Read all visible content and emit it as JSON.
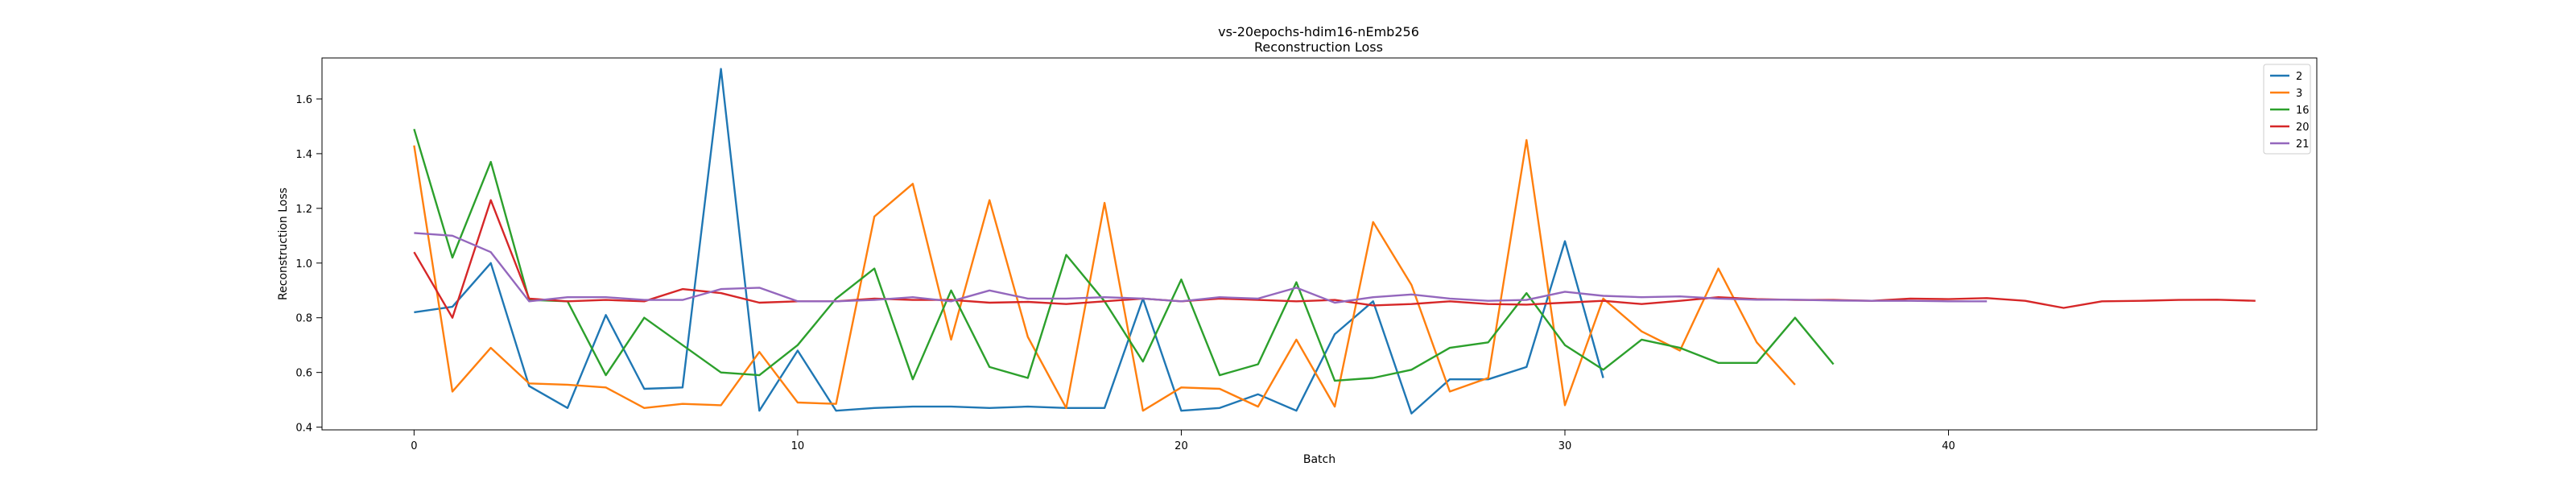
{
  "chart_data": {
    "type": "line",
    "title": "vs-20epochs-hdim16-nEmb256",
    "subtitle": "Reconstruction Loss",
    "xlabel": "Batch",
    "ylabel": "Reconstruction Loss",
    "xlim": [
      -2.4,
      49.6
    ],
    "ylim": [
      0.39,
      1.75
    ],
    "xticks": [
      0,
      10,
      20,
      30,
      40
    ],
    "yticks": [
      0.4,
      0.6,
      0.8,
      1.0,
      1.2,
      1.4,
      1.6
    ],
    "ytick_labels": [
      "0.4",
      "0.6",
      "0.8",
      "1.0",
      "1.2",
      "1.4",
      "1.6"
    ],
    "grid": false,
    "legend_position": "top-right",
    "series": [
      {
        "name": "2",
        "color": "#1f77b4",
        "values": [
          0.82,
          0.84,
          1.0,
          0.55,
          0.47,
          0.81,
          0.54,
          0.545,
          1.71,
          0.46,
          0.68,
          0.46,
          0.47,
          0.475,
          0.475,
          0.47,
          0.475,
          0.47,
          0.47,
          0.87,
          0.46,
          0.47,
          0.52,
          0.46,
          0.74,
          0.86,
          0.45,
          0.575,
          0.575,
          0.62,
          1.08,
          0.58
        ]
      },
      {
        "name": "3",
        "color": "#ff7f0e",
        "values": [
          1.43,
          0.53,
          0.69,
          0.56,
          0.555,
          0.545,
          0.47,
          0.485,
          0.48,
          0.675,
          0.49,
          0.485,
          1.17,
          1.29,
          0.72,
          1.23,
          0.73,
          0.47,
          1.22,
          0.46,
          0.545,
          0.54,
          0.475,
          0.72,
          0.475,
          1.15,
          0.92,
          0.53,
          0.58,
          1.45,
          0.48,
          0.87,
          0.75,
          0.68,
          0.98,
          0.71,
          0.555
        ]
      },
      {
        "name": "16",
        "color": "#2ca02c",
        "values": [
          1.49,
          1.02,
          1.37,
          0.865,
          0.86,
          0.59,
          0.8,
          0.7,
          0.6,
          0.59,
          0.7,
          0.87,
          0.98,
          0.575,
          0.9,
          0.62,
          0.58,
          1.03,
          0.86,
          0.64,
          0.94,
          0.59,
          0.63,
          0.93,
          0.57,
          0.58,
          0.61,
          0.69,
          0.71,
          0.89,
          0.7,
          0.61,
          0.72,
          0.69,
          0.635,
          0.635,
          0.8,
          0.63
        ]
      },
      {
        "name": "20",
        "color": "#d62728",
        "values": [
          1.04,
          0.8,
          1.23,
          0.87,
          0.86,
          0.865,
          0.86,
          0.905,
          0.89,
          0.855,
          0.86,
          0.86,
          0.87,
          0.865,
          0.865,
          0.855,
          0.858,
          0.85,
          0.86,
          0.87,
          0.86,
          0.87,
          0.865,
          0.86,
          0.865,
          0.845,
          0.85,
          0.86,
          0.85,
          0.848,
          0.855,
          0.862,
          0.85,
          0.862,
          0.875,
          0.868,
          0.865,
          0.865,
          0.862,
          0.87,
          0.868,
          0.872,
          0.862,
          0.836,
          0.86,
          0.862,
          0.865,
          0.866,
          0.862
        ]
      },
      {
        "name": "21",
        "color": "#9467bd",
        "values": [
          1.11,
          1.1,
          1.04,
          0.86,
          0.875,
          0.875,
          0.865,
          0.865,
          0.905,
          0.91,
          0.86,
          0.86,
          0.865,
          0.875,
          0.86,
          0.9,
          0.87,
          0.87,
          0.875,
          0.87,
          0.86,
          0.875,
          0.87,
          0.91,
          0.855,
          0.875,
          0.885,
          0.87,
          0.862,
          0.865,
          0.895,
          0.88,
          0.875,
          0.878,
          0.87,
          0.866,
          0.866,
          0.863,
          0.862,
          0.862,
          0.86,
          0.86
        ]
      }
    ]
  }
}
